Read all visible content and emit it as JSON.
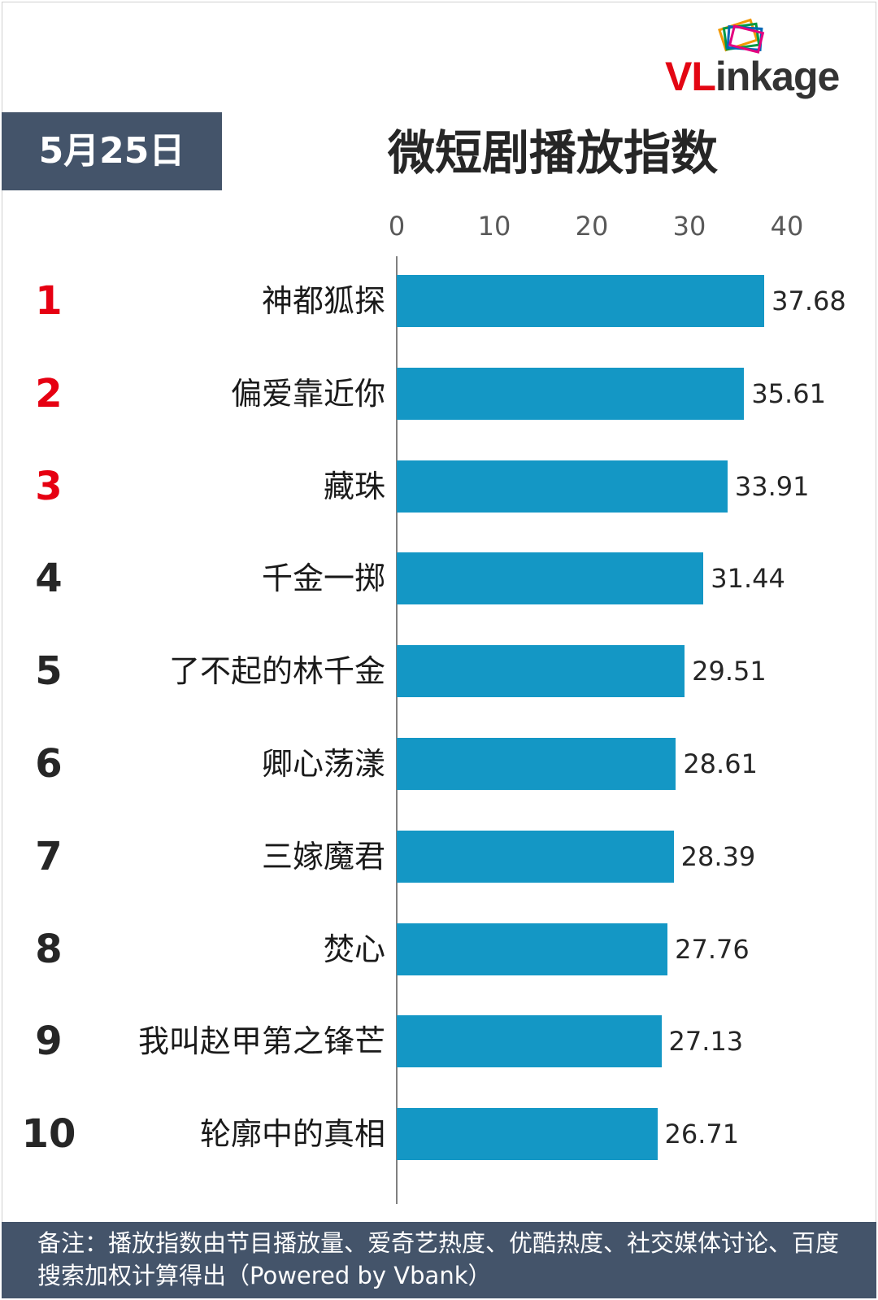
{
  "logo": {
    "text_red": "VL",
    "text_dark": "inkage",
    "dark_color": "#333333",
    "accent_color": "#e30613"
  },
  "date_label": "5月25日",
  "chart_data": {
    "type": "bar",
    "orientation": "horizontal",
    "title": "微短剧播放指数",
    "xlim": [
      0,
      40
    ],
    "xticks": [
      "0",
      "10",
      "20",
      "30",
      "40"
    ],
    "bar_color": "#1497c5",
    "top_rank_color": "#e60012",
    "ranks": [
      "1",
      "2",
      "3",
      "4",
      "5",
      "6",
      "7",
      "8",
      "9",
      "10"
    ],
    "categories": [
      "神都狐探",
      "偏爱靠近你",
      "藏珠",
      "千金一掷",
      "了不起的林千金",
      "卿心荡漾",
      "三嫁魔君",
      "焚心",
      "我叫赵甲第之锋芒",
      "轮廓中的真相"
    ],
    "values": [
      37.68,
      35.61,
      33.91,
      31.44,
      29.51,
      28.61,
      28.39,
      27.76,
      27.13,
      26.71
    ],
    "value_labels": [
      "37.68",
      "35.61",
      "33.91",
      "31.44",
      "29.51",
      "28.61",
      "28.39",
      "27.76",
      "27.13",
      "26.71"
    ]
  },
  "footer": {
    "note": "备注：播放指数由节目播放量、爱奇艺热度、优酷热度、社交媒体讨论、百度搜索加权计算得出（Powered by Vbank）"
  }
}
